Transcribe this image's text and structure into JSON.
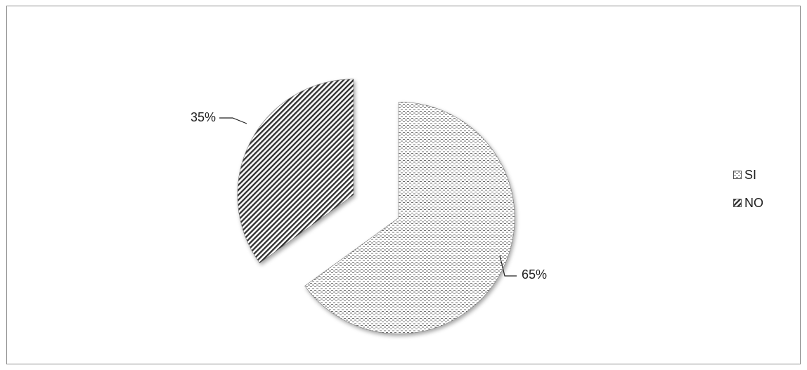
{
  "chart_data": {
    "type": "pie",
    "title": "",
    "categories": [
      "SI",
      "NO"
    ],
    "values": [
      65,
      35
    ],
    "data_labels": [
      "65%",
      "35%"
    ],
    "exploded": true,
    "legend_position": "right",
    "patterns": [
      "dotted-dash",
      "diagonal-stripes"
    ]
  },
  "legend": {
    "items": [
      {
        "label": "SI",
        "pattern": "dotted-dash"
      },
      {
        "label": "NO",
        "pattern": "diagonal-stripes"
      }
    ]
  }
}
